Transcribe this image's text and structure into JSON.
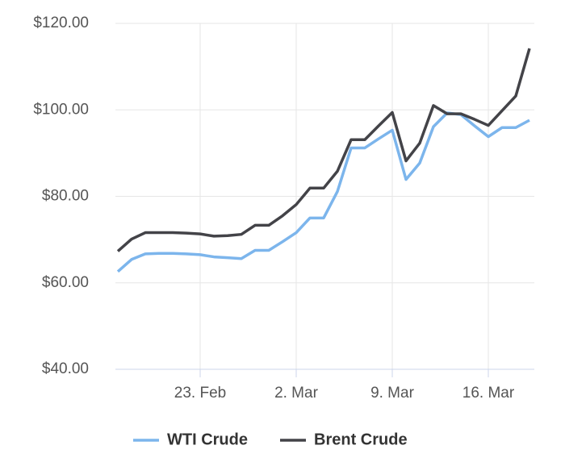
{
  "chart_data": {
    "type": "line",
    "categories": [
      null,
      null,
      null,
      null,
      null,
      null,
      "23. Feb",
      null,
      null,
      null,
      null,
      null,
      null,
      "2. Mar",
      null,
      null,
      null,
      null,
      null,
      null,
      "9. Mar",
      null,
      null,
      null,
      null,
      null,
      null,
      "16. Mar",
      null,
      null,
      null
    ],
    "series": [
      {
        "name": "WTI Crude",
        "color": "#7cb5ec",
        "values": [
          62.6,
          65.4,
          66.7,
          66.8,
          66.8,
          66.7,
          66.5,
          66.0,
          65.8,
          65.6,
          67.5,
          67.5,
          69.5,
          71.6,
          75.0,
          75.0,
          81.1,
          91.2,
          91.2,
          93.3,
          95.3,
          83.9,
          87.7,
          96.1,
          99.3,
          98.9,
          96.3,
          93.8,
          95.9,
          95.9,
          97.6
        ]
      },
      {
        "name": "Brent Crude",
        "color": "#434348",
        "values": [
          67.3,
          70.1,
          71.6,
          71.6,
          71.6,
          71.5,
          71.3,
          70.8,
          70.9,
          71.2,
          73.3,
          73.3,
          75.5,
          78.1,
          81.9,
          81.9,
          85.8,
          93.1,
          93.1,
          96.3,
          99.4,
          88.2,
          92.3,
          101.0,
          99.1,
          99.1,
          97.8,
          96.4,
          99.8,
          103.2,
          114.2
        ]
      }
    ],
    "ylim": [
      40,
      120
    ],
    "yticks": [
      {
        "value": 40,
        "label": "$40.00"
      },
      {
        "value": 60,
        "label": "$60.00"
      },
      {
        "value": 80,
        "label": "$80.00"
      },
      {
        "value": 100,
        "label": "$100.00"
      },
      {
        "value": 120,
        "label": "$120.00"
      }
    ],
    "grid": true,
    "legend": "bottom"
  }
}
